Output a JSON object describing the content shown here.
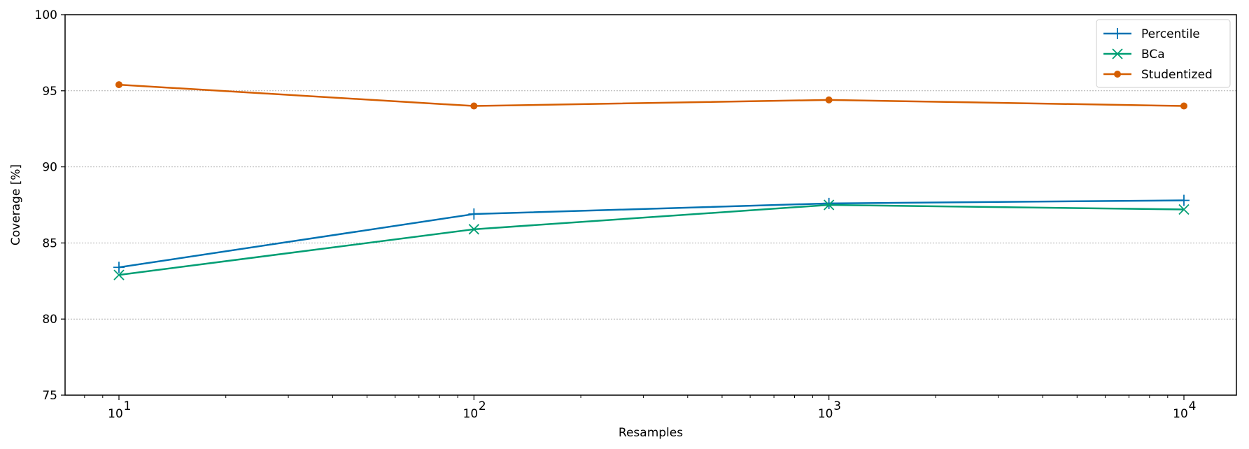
{
  "chart_data": {
    "type": "line",
    "xlabel": "Resamples",
    "ylabel": "Coverage [%]",
    "xscale": "log",
    "x": [
      10,
      100,
      1000,
      10000
    ],
    "x_tick_labels": [
      {
        "base": "10",
        "exp": "1"
      },
      {
        "base": "10",
        "exp": "2"
      },
      {
        "base": "10",
        "exp": "3"
      },
      {
        "base": "10",
        "exp": "4"
      }
    ],
    "ylim": [
      75,
      100
    ],
    "y_ticks": [
      75,
      80,
      85,
      90,
      95,
      100
    ],
    "grid": "horizontal dotted",
    "legend": "top-right",
    "series": [
      {
        "name": "Percentile",
        "color": "#0072B2",
        "marker": "plus",
        "values": [
          83.4,
          86.9,
          87.6,
          87.8
        ]
      },
      {
        "name": "BCa",
        "color": "#009E73",
        "marker": "x",
        "values": [
          82.9,
          85.9,
          87.5,
          87.2
        ]
      },
      {
        "name": "Studentized",
        "color": "#D55E00",
        "marker": "circle",
        "values": [
          95.4,
          94.0,
          94.4,
          94.0
        ]
      }
    ]
  }
}
